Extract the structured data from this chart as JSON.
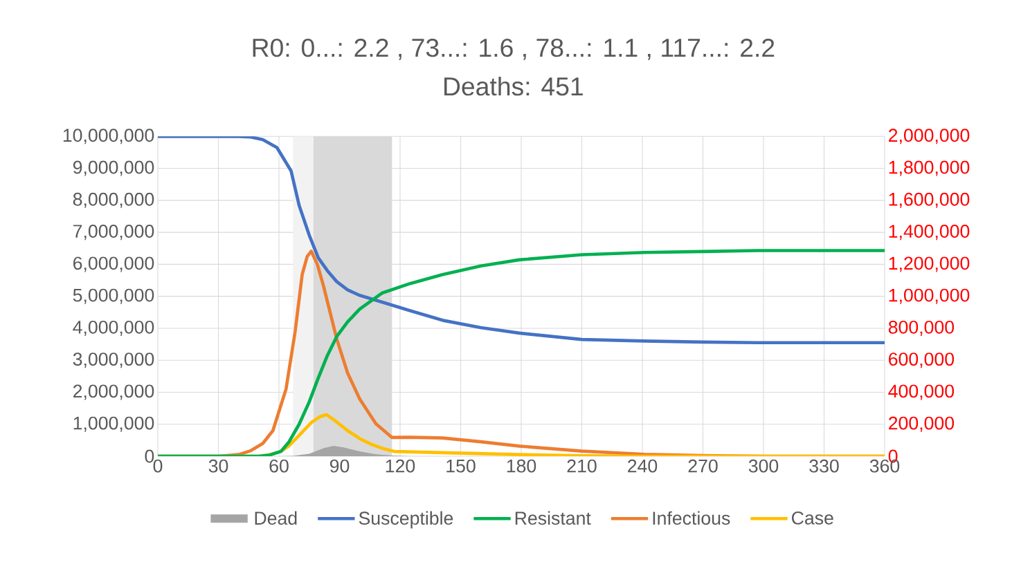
{
  "chart_data": {
    "type": "line",
    "title": "R0:  0...: 2.2 ,  73...: 1.6 ,  78...: 1.1 ,  117...: 2.2",
    "subtitle": "Deaths: 451",
    "xlim": [
      0,
      360
    ],
    "xticks": [
      0,
      30,
      60,
      90,
      120,
      150,
      180,
      210,
      240,
      270,
      300,
      330,
      360
    ],
    "ylim": [
      0,
      10000000
    ],
    "yticks": [
      0,
      {
        "value": 1000000,
        "label": "1,000,000"
      },
      {
        "value": 2000000,
        "label": "2,000,000"
      },
      {
        "value": 3000000,
        "label": "3,000,000"
      },
      {
        "value": 4000000,
        "label": "4,000,000"
      },
      {
        "value": 5000000,
        "label": "5,000,000"
      },
      {
        "value": 6000000,
        "label": "6,000,000"
      },
      {
        "value": 7000000,
        "label": "7,000,000"
      },
      {
        "value": 8000000,
        "label": "8,000,000"
      },
      {
        "value": 9000000,
        "label": "9,000,000"
      },
      {
        "value": 10000000,
        "label": "10,000,000"
      }
    ],
    "y2lim": [
      0,
      2000000
    ],
    "y2ticks": [
      0,
      {
        "value": 200000,
        "label": "200,000"
      },
      {
        "value": 400000,
        "label": "400,000"
      },
      {
        "value": 600000,
        "label": "600,000"
      },
      {
        "value": 800000,
        "label": "800,000"
      },
      {
        "value": 1000000,
        "label": "1,000,000"
      },
      {
        "value": 1200000,
        "label": "1,200,000"
      },
      {
        "value": 1400000,
        "label": "1,400,000"
      },
      {
        "value": 1600000,
        "label": "1,600,000"
      },
      {
        "value": 1800000,
        "label": "1,800,000"
      },
      {
        "value": 2000000,
        "label": "2,000,000"
      }
    ],
    "grid": true,
    "legend": "bottom",
    "line_style": "solid",
    "marker": "none",
    "bands": [
      {
        "axis": "x",
        "from": 67,
        "to": 77,
        "color": "#f2f2f2"
      },
      {
        "axis": "x",
        "from": 77,
        "to": 116,
        "color": "#d9d9d9"
      }
    ],
    "series": [
      {
        "name": "Dead",
        "type": "area",
        "axis": "y2",
        "color": "#a5a5a5",
        "x": [
          0,
          60,
          67,
          75,
          82,
          87,
          92,
          100,
          108,
          116,
          125,
          360
        ],
        "values": [
          0,
          0,
          2000,
          15000,
          50000,
          65000,
          55000,
          30000,
          12000,
          4000,
          0,
          0
        ]
      },
      {
        "name": "Susceptible",
        "color": "#4472c4",
        "x": [
          0,
          40,
          46,
          52,
          59,
          66,
          70,
          75,
          79.5,
          84,
          88.6,
          94,
          100,
          111,
          125,
          141,
          160,
          179,
          210,
          241,
          270,
          297,
          330,
          360
        ],
        "values": [
          10000000,
          10000000,
          9980000,
          9900000,
          9650000,
          8920000,
          7840000,
          6910000,
          6200000,
          5800000,
          5460000,
          5200000,
          5030000,
          4820000,
          4550000,
          4250000,
          4020000,
          3850000,
          3650000,
          3600000,
          3570000,
          3550000,
          3550000,
          3550000
        ]
      },
      {
        "name": "Resistant",
        "color": "#00b050",
        "x": [
          0,
          50,
          55,
          61,
          65,
          70,
          75,
          79.5,
          84,
          88.6,
          94,
          100,
          111,
          125,
          141,
          160,
          179,
          210,
          241,
          270,
          297,
          330,
          360
        ],
        "values": [
          0,
          0,
          30000,
          150000,
          450000,
          1000000,
          1700000,
          2450000,
          3150000,
          3740000,
          4200000,
          4600000,
          5100000,
          5400000,
          5680000,
          5950000,
          6140000,
          6300000,
          6370000,
          6400000,
          6430000,
          6430000,
          6430000
        ]
      },
      {
        "name": "Infectious",
        "axis": "y2",
        "color": "#ed7d31",
        "x": [
          0,
          30,
          40,
          46,
          52,
          57,
          63.5,
          68,
          71.5,
          74,
          76,
          79,
          82,
          88.6,
          94,
          100,
          108,
          116,
          125,
          141,
          160,
          179,
          210,
          241,
          270,
          300,
          360
        ],
        "values": [
          0,
          0,
          10000,
          34000,
          80000,
          160000,
          420000,
          778000,
          1136000,
          1250000,
          1282000,
          1200000,
          1067000,
          734000,
          520000,
          358000,
          203000,
          117000,
          118000,
          114000,
          90000,
          63000,
          32000,
          12000,
          4000,
          0,
          0
        ]
      },
      {
        "name": "Case",
        "axis": "y2",
        "color": "#ffc000",
        "x": [
          0,
          50,
          55,
          61,
          65,
          70,
          76,
          80,
          83.6,
          88,
          94,
          100,
          106,
          111,
          117,
          141,
          179,
          210,
          241,
          360
        ],
        "values": [
          0,
          0,
          8000,
          30000,
          65000,
          130000,
          210000,
          245000,
          260000,
          220000,
          160000,
          110000,
          73000,
          50000,
          30000,
          22000,
          10000,
          3000,
          0,
          0
        ]
      }
    ]
  }
}
